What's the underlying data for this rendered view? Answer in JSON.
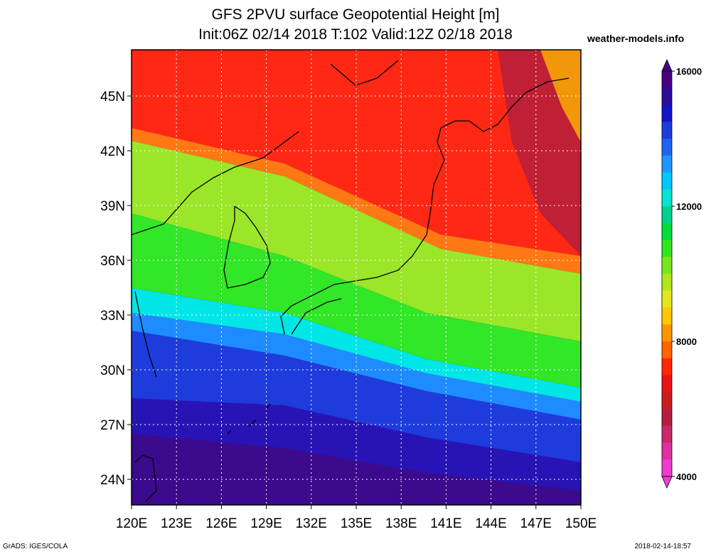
{
  "header": {
    "title_line1": "GFS 2PVU surface Geopotential Height [m]",
    "title_line2": "Init:06Z 02/14 2018 T:102 Valid:12Z 02/18 2018",
    "site": "weather-models.info"
  },
  "footer": {
    "left": "GrADS: IGES/COLA",
    "right": "2018-02-14-18:57"
  },
  "map": {
    "lon_labels": [
      "120E",
      "123E",
      "126E",
      "129E",
      "132E",
      "135E",
      "138E",
      "141E",
      "144E",
      "147E",
      "150E"
    ],
    "lat_labels": [
      "45N",
      "42N",
      "39N",
      "36N",
      "33N",
      "30N",
      "27N",
      "24N"
    ]
  },
  "colorbar": {
    "labels": [
      "16000",
      "12000",
      "8000",
      "4000"
    ],
    "colors": [
      "#4b0082",
      "#2f0a96",
      "#1414c8",
      "#1e3cdc",
      "#1e64f0",
      "#1e96ff",
      "#00c8ff",
      "#00e6d2",
      "#00d28c",
      "#00dc3c",
      "#32e61e",
      "#78e61e",
      "#b4e61e",
      "#e6e61e",
      "#ffc800",
      "#ff9600",
      "#ff6400",
      "#ff2800",
      "#e61414",
      "#c81e1e",
      "#b41e3c",
      "#c8286e",
      "#dc32a0",
      "#f03cd2"
    ]
  }
}
